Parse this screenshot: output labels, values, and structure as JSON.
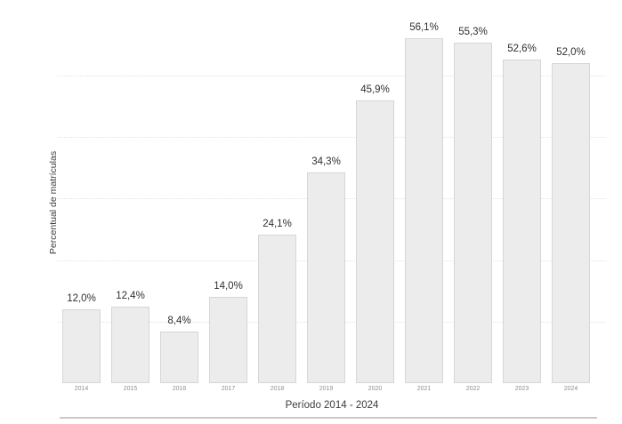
{
  "chart_data": {
    "type": "bar",
    "categories": [
      "2014",
      "2015",
      "2016",
      "2017",
      "2018",
      "2019",
      "2020",
      "2021",
      "2022",
      "2023",
      "2024"
    ],
    "values": [
      12.0,
      12.4,
      8.4,
      14.0,
      24.1,
      34.3,
      45.9,
      56.1,
      55.3,
      52.6,
      52.0
    ],
    "value_labels": [
      "12,0%",
      "12,4%",
      "8,4%",
      "14,0%",
      "24,1%",
      "34,3%",
      "45,9%",
      "56,1%",
      "55,3%",
      "52,6%",
      "52,0%"
    ],
    "title": "",
    "xlabel": "Período 2014 - 2024",
    "ylabel": "Percentual de matrículas",
    "ylim": [
      0,
      58
    ],
    "grid": "horizontal-dotted",
    "legend": "none",
    "colors": {
      "bar_fill": "#ececec",
      "bar_border": "#d6d6d6",
      "gridline": "#e2e2e2",
      "value_label_text": "#2f2f2f",
      "axis_title_text": "#3c3c3c",
      "tick_text": "#8f8f8f",
      "bottom_rule": "#c9c9c9",
      "background": "#ffffff"
    }
  }
}
